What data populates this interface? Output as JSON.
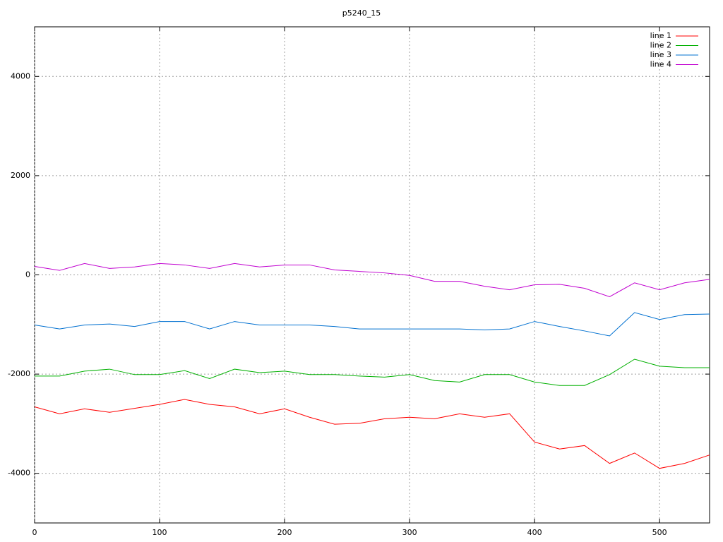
{
  "chart_data": {
    "type": "line",
    "title": "p5240_15",
    "x": [
      0,
      20,
      40,
      60,
      80,
      100,
      120,
      140,
      160,
      180,
      200,
      220,
      240,
      260,
      280,
      300,
      320,
      340,
      360,
      380,
      400,
      420,
      440,
      460,
      480,
      500,
      520,
      540
    ],
    "series": [
      {
        "name": "line 1",
        "color": "#ff0000",
        "values": [
          -2660,
          -2800,
          -2700,
          -2770,
          -2690,
          -2610,
          -2510,
          -2610,
          -2660,
          -2800,
          -2700,
          -2870,
          -3010,
          -2990,
          -2900,
          -2870,
          -2900,
          -2800,
          -2870,
          -2800,
          -3370,
          -3510,
          -3440,
          -3800,
          -3590,
          -3900,
          -3800,
          -3630
        ]
      },
      {
        "name": "line 2",
        "color": "#00b000",
        "values": [
          -2040,
          -2040,
          -1940,
          -1900,
          -2010,
          -2010,
          -1930,
          -2090,
          -1900,
          -1970,
          -1940,
          -2010,
          -2010,
          -2040,
          -2060,
          -2010,
          -2130,
          -2160,
          -2010,
          -2010,
          -2160,
          -2230,
          -2230,
          -2010,
          -1700,
          -1840,
          -1870,
          -1870
        ]
      },
      {
        "name": "line 3",
        "color": "#0070d0",
        "values": [
          -1010,
          -1090,
          -1010,
          -990,
          -1040,
          -940,
          -940,
          -1090,
          -940,
          -1010,
          -1010,
          -1010,
          -1040,
          -1090,
          -1090,
          -1090,
          -1090,
          -1090,
          -1110,
          -1090,
          -940,
          -1040,
          -1130,
          -1230,
          -760,
          -900,
          -800,
          -790
        ]
      },
      {
        "name": "line 4",
        "color": "#c000d0",
        "values": [
          170,
          90,
          230,
          130,
          160,
          230,
          200,
          130,
          230,
          160,
          200,
          200,
          100,
          70,
          40,
          -10,
          -130,
          -130,
          -230,
          -300,
          -200,
          -190,
          -270,
          -440,
          -160,
          -300,
          -160,
          -90
        ]
      }
    ],
    "xlim": [
      0,
      540
    ],
    "ylim": [
      -5000,
      5000
    ],
    "xticks": [
      0,
      100,
      200,
      300,
      400,
      500
    ],
    "yticks": [
      -4000,
      -2000,
      0,
      2000,
      4000
    ],
    "grid": true,
    "legend": "top-right"
  }
}
